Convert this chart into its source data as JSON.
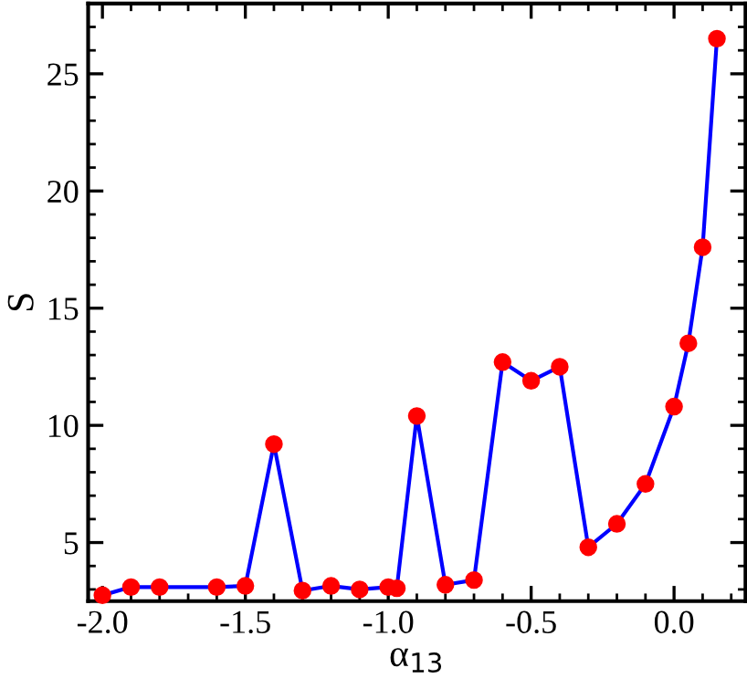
{
  "chart_data": {
    "type": "line",
    "xlabel": "α$_{13}$",
    "ylabel": "S",
    "xlim": [
      -2.05,
      0.25
    ],
    "ylim": [
      2.5,
      28
    ],
    "xticks": [
      {
        "value": -2.0,
        "label": "-2.0"
      },
      {
        "value": -1.5,
        "label": "-1.5"
      },
      {
        "value": -1.0,
        "label": "-1.0"
      },
      {
        "value": -0.5,
        "label": "-0.5"
      },
      {
        "value": 0.0,
        "label": "0.0"
      }
    ],
    "yticks": [
      5,
      10,
      15,
      20,
      25
    ],
    "marker": "circle",
    "line_style": "solid",
    "grid": false,
    "legend": false,
    "series": [
      {
        "color": "#0000ff",
        "colors": [
          "#ff0000",
          "#ff0000",
          "#ff0000",
          "#ff0000",
          "#ff0000",
          "#ff0000",
          "#ff0000",
          "#ff0000",
          "#ff0000",
          "#ff0000",
          "#ff0000",
          "#ff0000",
          "#ff0000",
          "#ff0000",
          "#ff0000",
          "#ff0000",
          "#ff0000",
          "#ff0000",
          "#ff0000",
          "#ff0000",
          "#ff0000",
          "#ff0000",
          "#ff0000",
          "#ff0000"
        ],
        "x": [
          -2.0,
          -1.9,
          -1.8,
          -1.6,
          -1.5,
          -1.4,
          -1.3,
          -1.2,
          -1.1,
          -1.0,
          -0.97,
          -0.9,
          -0.8,
          -0.7,
          -0.6,
          -0.5,
          -0.4,
          -0.3,
          -0.2,
          -0.1,
          0.0,
          0.05,
          0.1,
          0.15
        ],
        "values": [
          2.75,
          3.1,
          3.1,
          3.1,
          3.15,
          9.2,
          2.95,
          3.15,
          3.0,
          3.1,
          3.05,
          10.4,
          3.2,
          3.4,
          12.7,
          11.9,
          12.5,
          4.8,
          5.8,
          7.5,
          10.8,
          13.5,
          17.6,
          26.5
        ]
      }
    ]
  }
}
